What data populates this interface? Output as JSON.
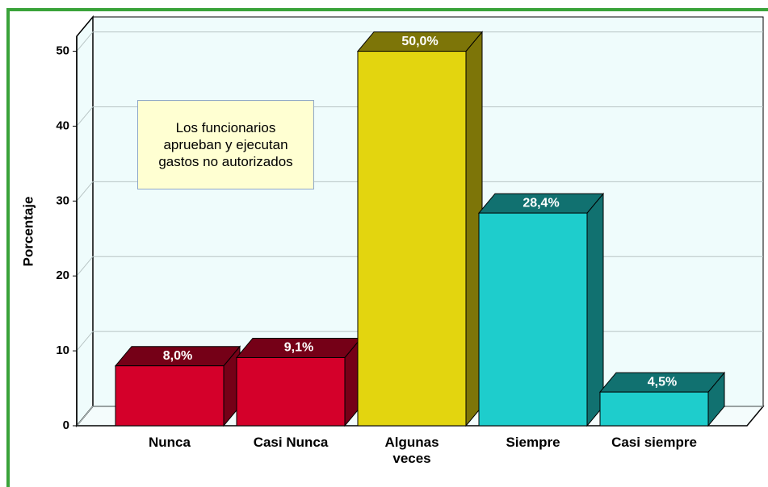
{
  "chart_data": {
    "type": "bar3d",
    "ylabel": "Porcentaje",
    "annotation": [
      "Los funcionarios",
      "aprueban y ejecutan",
      "gastos no autorizados"
    ],
    "categories": [
      "Nunca",
      "Casi Nunca",
      "Algunas veces",
      "Siempre",
      "Casi siempre"
    ],
    "values": [
      8.0,
      9.1,
      50.0,
      28.4,
      4.5
    ],
    "value_labels": [
      "8,0%",
      "9,1%",
      "50,0%",
      "28,4%",
      "4,5%"
    ],
    "colors": [
      "#d4002a",
      "#d4002a",
      "#e3d50f",
      "#1ecdcc",
      "#1ecdcc"
    ],
    "ylim": [
      0,
      52
    ],
    "yticks": [
      0,
      10,
      20,
      30,
      40,
      50
    ],
    "grid": true
  }
}
